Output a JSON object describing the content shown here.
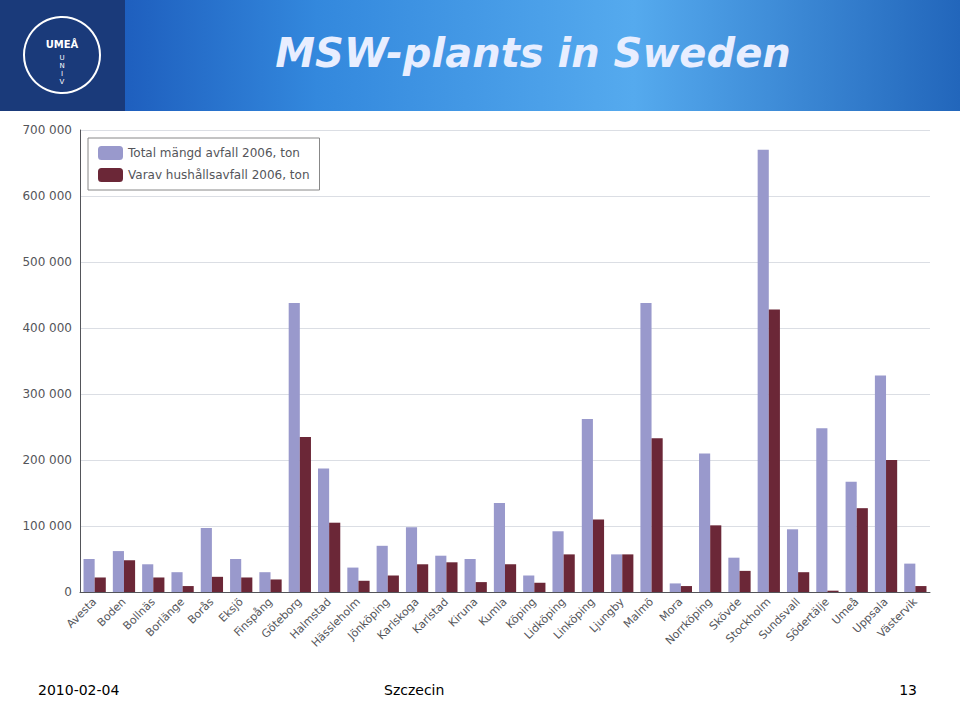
{
  "chart_data": {
    "type": "bar",
    "title": "MSW-plants in Sweden",
    "annotations": [
      "UMEÅ",
      "U\nN\nI\nV",
      "2010-02-04",
      "Szczecin",
      "13"
    ],
    "categories": [
      "Avesta",
      "Boden",
      "Bollnäs",
      "Borlänge",
      "Borås",
      "Eksjö",
      "Finspång",
      "Göteborg",
      "Halmstad",
      "Hässleholm",
      "Jönköping",
      "Karlskoga",
      "Karlstad",
      "Kiruna",
      "Kumla",
      "Köping",
      "Lidköping",
      "Linköping",
      "Ljungby",
      "Malmö",
      "Mora",
      "Norrköping",
      "Skövde",
      "Stockholm",
      "Sundsvall",
      "Södertälje",
      "Umeå",
      "Uppsala",
      "Västervik"
    ],
    "series": [
      {
        "name": "Total mängd avfall 2006, ton",
        "color": "#9999cc",
        "values": [
          50000,
          62000,
          42000,
          30000,
          97000,
          50000,
          30000,
          438000,
          187000,
          37000,
          70000,
          98000,
          55000,
          50000,
          135000,
          25000,
          92000,
          262000,
          57000,
          438000,
          13000,
          210000,
          52000,
          670000,
          95000,
          248000,
          167000,
          328000,
          43000
        ]
      },
      {
        "name": "Varav hushållsavfall 2006, ton",
        "color": "#6b2737",
        "values": [
          22000,
          48000,
          22000,
          9000,
          23000,
          22000,
          19000,
          235000,
          105000,
          17000,
          25000,
          42000,
          45000,
          15000,
          42000,
          14000,
          57000,
          110000,
          57000,
          233000,
          9000,
          101000,
          32000,
          428000,
          30000,
          2000,
          127000,
          200000,
          9000
        ]
      }
    ],
    "ylim": [
      0,
      700000
    ],
    "yticks": [
      0,
      {
        "value": 100000,
        "label": "100 000"
      },
      {
        "value": 200000,
        "label": "200 000"
      },
      {
        "value": 300000,
        "label": "300 000"
      },
      {
        "value": 400000,
        "label": "400 000"
      },
      {
        "value": 500000,
        "label": "500 000"
      },
      {
        "value": 600000,
        "label": "600 000"
      },
      {
        "value": 700000,
        "label": "700 000"
      }
    ],
    "grid": true,
    "legend": "upper left"
  }
}
